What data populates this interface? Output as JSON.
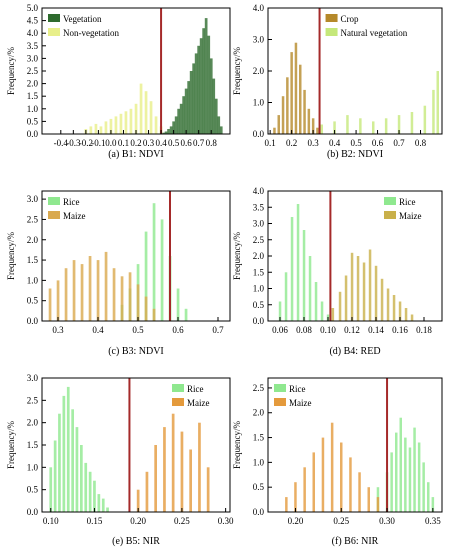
{
  "chart_data": [
    {
      "type": "histogram",
      "caption": "(a) B1: NDVI",
      "ylabel": "Frequency/%",
      "xlim": [
        -0.55,
        0.95
      ],
      "ylim": [
        0,
        5.0
      ],
      "xticks": [
        "-0.4",
        "-0.3",
        "-0.2",
        "-0.1",
        "0.0",
        "0.1",
        "0.2",
        "0.3",
        "0.4",
        "0.5",
        "0.6",
        "0.7",
        "0.8"
      ],
      "xtick_values": [
        -0.4,
        -0.3,
        -0.2,
        -0.1,
        0.0,
        0.1,
        0.2,
        0.3,
        0.4,
        0.5,
        0.6,
        0.7,
        0.8
      ],
      "yticks": [
        "0.0",
        "0.5",
        "1.0",
        "1.5",
        "2.0",
        "2.5",
        "3.0",
        "3.5",
        "4.0",
        "4.5",
        "5.0"
      ],
      "ytick_values": [
        0,
        0.5,
        1.0,
        1.5,
        2.0,
        2.5,
        3.0,
        3.5,
        4.0,
        4.5,
        5.0
      ],
      "threshold": 0.4,
      "legend_position": "top-left",
      "series": [
        {
          "name": "Vegetation",
          "color": "#2e6b2e",
          "x": [
            0.42,
            0.44,
            0.46,
            0.48,
            0.5,
            0.52,
            0.54,
            0.56,
            0.58,
            0.6,
            0.62,
            0.64,
            0.66,
            0.68,
            0.7,
            0.72,
            0.74,
            0.76,
            0.78,
            0.8,
            0.82,
            0.84,
            0.86,
            0.88
          ],
          "values": [
            0.05,
            0.1,
            0.2,
            0.3,
            0.5,
            0.7,
            1.0,
            1.2,
            1.5,
            1.8,
            2.1,
            2.5,
            2.8,
            3.2,
            3.5,
            3.8,
            4.2,
            4.6,
            3.9,
            3.0,
            2.2,
            1.4,
            0.7,
            0.3
          ]
        },
        {
          "name": "Non-vegetation",
          "color": "#e8ef8a",
          "x": [
            -0.2,
            -0.16,
            -0.12,
            -0.08,
            -0.04,
            0.0,
            0.04,
            0.08,
            0.12,
            0.16,
            0.2,
            0.24,
            0.28,
            0.32,
            0.36,
            0.4
          ],
          "values": [
            0.2,
            0.3,
            0.4,
            0.3,
            0.5,
            0.6,
            0.7,
            0.8,
            0.9,
            1.0,
            1.2,
            2.0,
            1.7,
            1.3,
            0.7,
            0.3
          ]
        }
      ]
    },
    {
      "type": "histogram",
      "caption": "(b) B2: NDVI",
      "ylabel": "Frequency/%",
      "xlim": [
        0.09,
        0.9
      ],
      "ylim": [
        0,
        4.0
      ],
      "xticks": [
        "0.1",
        "0.2",
        "0.3",
        "0.4",
        "0.5",
        "0.6",
        "0.7",
        "0.8"
      ],
      "xtick_values": [
        0.1,
        0.2,
        0.3,
        0.4,
        0.5,
        0.6,
        0.7,
        0.8
      ],
      "yticks": [
        "0.0",
        "1.0",
        "2.0",
        "3.0",
        "4.0"
      ],
      "ytick_values": [
        0,
        1.0,
        2.0,
        3.0,
        4.0
      ],
      "threshold": 0.33,
      "legend_position": "top-center",
      "series": [
        {
          "name": "Crop",
          "color": "#b5892a",
          "x": [
            0.12,
            0.14,
            0.16,
            0.18,
            0.2,
            0.22,
            0.24,
            0.26,
            0.28,
            0.3,
            0.32
          ],
          "values": [
            0.2,
            0.6,
            1.2,
            1.8,
            2.6,
            2.9,
            2.2,
            1.4,
            0.8,
            0.5,
            0.2
          ]
        },
        {
          "name": "Natural vegetation",
          "color": "#c5e87a",
          "x": [
            0.34,
            0.4,
            0.46,
            0.52,
            0.58,
            0.64,
            0.7,
            0.76,
            0.82,
            0.86,
            0.88
          ],
          "values": [
            0.3,
            0.4,
            0.6,
            0.5,
            0.4,
            0.5,
            0.6,
            0.7,
            0.9,
            1.4,
            2.0
          ]
        }
      ]
    },
    {
      "type": "histogram",
      "caption": "(c) B3: NDVI",
      "ylabel": "Frequency/%",
      "xlim": [
        0.26,
        0.73
      ],
      "ylim": [
        0,
        3.2
      ],
      "xticks": [
        "0.3",
        "0.4",
        "0.5",
        "0.6",
        "0.7"
      ],
      "xtick_values": [
        0.3,
        0.4,
        0.5,
        0.6,
        0.7
      ],
      "yticks": [
        "0.0",
        "0.5",
        "1.0",
        "1.5",
        "2.0",
        "2.5",
        "3.0"
      ],
      "ytick_values": [
        0,
        0.5,
        1.0,
        1.5,
        2.0,
        2.5,
        3.0
      ],
      "threshold": 0.58,
      "legend_position": "top-left",
      "series": [
        {
          "name": "Rice",
          "color": "#8fe88f",
          "x": [
            0.46,
            0.48,
            0.5,
            0.52,
            0.54,
            0.56,
            0.58,
            0.6,
            0.62
          ],
          "values": [
            0.4,
            0.8,
            1.4,
            2.2,
            2.9,
            2.5,
            1.6,
            0.8,
            0.3
          ]
        },
        {
          "name": "Maize",
          "color": "#d9a94e",
          "x": [
            0.28,
            0.3,
            0.32,
            0.34,
            0.36,
            0.38,
            0.4,
            0.42,
            0.44,
            0.46,
            0.48,
            0.5,
            0.52,
            0.54
          ],
          "values": [
            0.8,
            1.0,
            1.3,
            1.5,
            1.4,
            1.6,
            1.5,
            1.7,
            1.3,
            1.1,
            1.2,
            0.9,
            0.6,
            0.3
          ]
        }
      ]
    },
    {
      "type": "histogram",
      "caption": "(d) B4: RED",
      "ylabel": "Frequency/%",
      "xlim": [
        0.05,
        0.195
      ],
      "ylim": [
        0,
        4.0
      ],
      "xticks": [
        "0.06",
        "0.08",
        "0.10",
        "0.12",
        "0.14",
        "0.16",
        "0.18"
      ],
      "xtick_values": [
        0.06,
        0.08,
        0.1,
        0.12,
        0.14,
        0.16,
        0.18
      ],
      "yticks": [
        "0.0",
        "0.5",
        "1.0",
        "1.5",
        "2.0",
        "2.5",
        "3.0",
        "3.5",
        "4.0"
      ],
      "ytick_values": [
        0,
        0.5,
        1.0,
        1.5,
        2.0,
        2.5,
        3.0,
        3.5,
        4.0
      ],
      "threshold": 0.102,
      "legend_position": "top-right",
      "series": [
        {
          "name": "Rice",
          "color": "#8fe88f",
          "x": [
            0.06,
            0.065,
            0.07,
            0.075,
            0.08,
            0.085,
            0.09,
            0.095,
            0.1
          ],
          "values": [
            0.6,
            1.5,
            3.2,
            3.6,
            2.8,
            2.0,
            1.2,
            0.6,
            0.2
          ]
        },
        {
          "name": "Maize",
          "color": "#c9b04a",
          "x": [
            0.104,
            0.11,
            0.115,
            0.12,
            0.125,
            0.13,
            0.135,
            0.14,
            0.145,
            0.15,
            0.155,
            0.16,
            0.165,
            0.17
          ],
          "values": [
            0.4,
            0.9,
            1.4,
            2.1,
            2.0,
            1.8,
            2.2,
            1.7,
            1.3,
            1.0,
            0.8,
            0.6,
            0.4,
            0.2
          ]
        }
      ]
    },
    {
      "type": "histogram",
      "caption": "(e) B5: NIR",
      "ylabel": "Frequency/%",
      "xlim": [
        0.09,
        0.305
      ],
      "ylim": [
        0,
        3.0
      ],
      "xticks": [
        "0.10",
        "0.15",
        "0.20",
        "0.25",
        "0.30"
      ],
      "xtick_values": [
        0.1,
        0.15,
        0.2,
        0.25,
        0.3
      ],
      "yticks": [
        "0.0",
        "0.5",
        "1.0",
        "1.5",
        "2.0",
        "2.5",
        "3.0"
      ],
      "ytick_values": [
        0,
        0.5,
        1.0,
        1.5,
        2.0,
        2.5,
        3.0
      ],
      "threshold": 0.19,
      "legend_position": "top-right",
      "series": [
        {
          "name": "Rice",
          "color": "#8fe88f",
          "x": [
            0.1,
            0.105,
            0.11,
            0.115,
            0.12,
            0.125,
            0.13,
            0.135,
            0.14,
            0.145,
            0.15,
            0.155,
            0.16,
            0.165
          ],
          "values": [
            1.0,
            1.6,
            2.2,
            2.6,
            2.8,
            2.3,
            1.9,
            1.5,
            1.1,
            0.9,
            0.7,
            0.4,
            0.3,
            0.1
          ]
        },
        {
          "name": "Maize",
          "color": "#e49a3c",
          "x": [
            0.2,
            0.21,
            0.22,
            0.23,
            0.24,
            0.25,
            0.26,
            0.27,
            0.28
          ],
          "values": [
            0.5,
            0.9,
            1.5,
            1.9,
            2.2,
            1.8,
            1.4,
            2.0,
            1.0
          ]
        }
      ]
    },
    {
      "type": "histogram",
      "caption": "(f) B6: NIR",
      "ylabel": "Frequency/%",
      "xlim": [
        0.17,
        0.36
      ],
      "ylim": [
        0,
        2.7
      ],
      "xticks": [
        "0.20",
        "0.25",
        "0.30",
        "0.35"
      ],
      "xtick_values": [
        0.2,
        0.25,
        0.3,
        0.35
      ],
      "yticks": [
        "0.0",
        "0.5",
        "1.0",
        "1.5",
        "2.0",
        "2.5"
      ],
      "ytick_values": [
        0,
        0.5,
        1.0,
        1.5,
        2.0,
        2.5
      ],
      "threshold": 0.3,
      "legend_position": "top-left",
      "series": [
        {
          "name": "Rice",
          "color": "#8fe88f",
          "x": [
            0.29,
            0.3,
            0.305,
            0.31,
            0.315,
            0.32,
            0.325,
            0.33,
            0.335,
            0.34,
            0.345,
            0.35
          ],
          "values": [
            0.5,
            0.8,
            1.2,
            1.6,
            1.9,
            1.5,
            1.3,
            1.7,
            1.4,
            1.0,
            0.6,
            0.3
          ]
        },
        {
          "name": "Maize",
          "color": "#e49a3c",
          "x": [
            0.19,
            0.2,
            0.21,
            0.22,
            0.23,
            0.24,
            0.25,
            0.26,
            0.27,
            0.28,
            0.29
          ],
          "values": [
            0.3,
            0.6,
            0.9,
            1.2,
            1.5,
            1.8,
            1.4,
            1.1,
            0.8,
            0.5,
            0.3
          ]
        }
      ]
    }
  ]
}
